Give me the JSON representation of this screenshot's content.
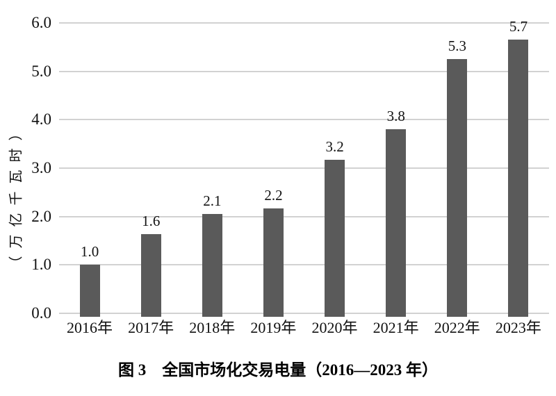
{
  "chart_data": {
    "type": "bar",
    "title": "图 3　全国市场化交易电量（2016—2023 年）",
    "ylabel": "（万亿千瓦时）",
    "xlabel": "",
    "categories": [
      "2016年",
      "2017年",
      "2018年",
      "2019年",
      "2020年",
      "2021年",
      "2022年",
      "2023年"
    ],
    "values": [
      1.0,
      1.6,
      2.1,
      2.2,
      3.2,
      3.8,
      5.3,
      5.7
    ],
    "value_labels": [
      "1.0",
      "1.6",
      "2.1",
      "2.2",
      "3.2",
      "3.8",
      "5.3",
      "5.7"
    ],
    "bar_heights_estimated": [
      1.0,
      1.63,
      2.06,
      2.17,
      3.17,
      3.8,
      5.25,
      5.65
    ],
    "ylim": [
      0,
      6
    ],
    "yticks": [
      0,
      1,
      2,
      3,
      4,
      5,
      6
    ],
    "ytick_labels": [
      "0.0",
      "1.0",
      "2.0",
      "3.0",
      "4.0",
      "5.0",
      "6.0"
    ],
    "grid": true,
    "legend": false,
    "bar_color": "#5a5a5a",
    "gridline_color": "#d2d2d2",
    "text_color": "#111111"
  }
}
